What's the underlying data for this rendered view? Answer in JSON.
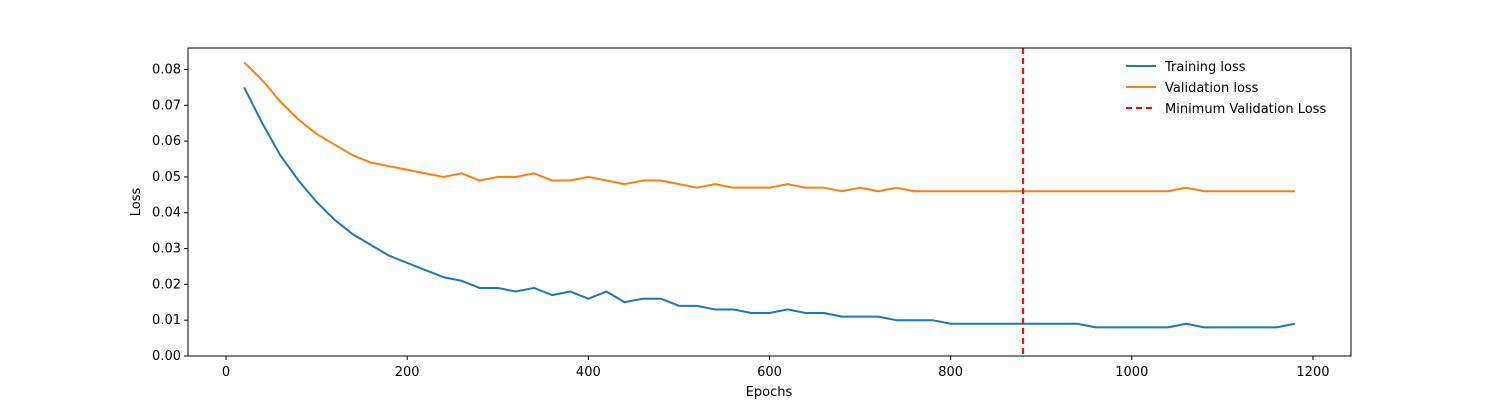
{
  "chart_data": {
    "type": "line",
    "title": "",
    "xlabel": "Epochs",
    "ylabel": "Loss",
    "xlim": [
      -42,
      1242
    ],
    "ylim": [
      0.0,
      0.086
    ],
    "xticks": [
      0,
      200,
      400,
      600,
      800,
      1000,
      1200
    ],
    "xtick_labels": [
      "0",
      "200",
      "400",
      "600",
      "800",
      "1000",
      "1200"
    ],
    "yticks": [
      0.0,
      0.01,
      0.02,
      0.03,
      0.04,
      0.05,
      0.06,
      0.07,
      0.08
    ],
    "ytick_labels": [
      "0.00",
      "0.01",
      "0.02",
      "0.03",
      "0.04",
      "0.05",
      "0.06",
      "0.07",
      "0.08"
    ],
    "grid": false,
    "legend_position": "top-right",
    "series": [
      {
        "name": "Training loss",
        "color": "#1f77b4",
        "x": [
          20,
          40,
          60,
          80,
          100,
          120,
          140,
          160,
          180,
          200,
          220,
          240,
          260,
          280,
          300,
          320,
          340,
          360,
          380,
          400,
          420,
          440,
          460,
          480,
          500,
          520,
          540,
          560,
          580,
          600,
          620,
          640,
          660,
          680,
          700,
          720,
          740,
          760,
          780,
          800,
          820,
          840,
          860,
          880,
          900,
          920,
          940,
          960,
          980,
          1000,
          1020,
          1040,
          1060,
          1080,
          1100,
          1120,
          1140,
          1160,
          1180
        ],
        "y": [
          0.075,
          0.065,
          0.056,
          0.049,
          0.043,
          0.038,
          0.034,
          0.031,
          0.028,
          0.026,
          0.024,
          0.022,
          0.021,
          0.019,
          0.019,
          0.018,
          0.019,
          0.017,
          0.018,
          0.016,
          0.018,
          0.015,
          0.016,
          0.016,
          0.014,
          0.014,
          0.013,
          0.013,
          0.012,
          0.012,
          0.013,
          0.012,
          0.012,
          0.011,
          0.011,
          0.011,
          0.01,
          0.01,
          0.01,
          0.009,
          0.009,
          0.009,
          0.009,
          0.009,
          0.009,
          0.009,
          0.009,
          0.008,
          0.008,
          0.008,
          0.008,
          0.008,
          0.009,
          0.008,
          0.008,
          0.008,
          0.008,
          0.008,
          0.009
        ]
      },
      {
        "name": "Validation loss",
        "color": "#ff7f0e",
        "x": [
          20,
          40,
          60,
          80,
          100,
          120,
          140,
          160,
          180,
          200,
          220,
          240,
          260,
          280,
          300,
          320,
          340,
          360,
          380,
          400,
          420,
          440,
          460,
          480,
          500,
          520,
          540,
          560,
          580,
          600,
          620,
          640,
          660,
          680,
          700,
          720,
          740,
          760,
          780,
          800,
          820,
          840,
          860,
          880,
          900,
          920,
          940,
          960,
          980,
          1000,
          1020,
          1040,
          1060,
          1080,
          1100,
          1120,
          1140,
          1160,
          1180
        ],
        "y": [
          0.082,
          0.077,
          0.071,
          0.066,
          0.062,
          0.059,
          0.056,
          0.054,
          0.053,
          0.052,
          0.051,
          0.05,
          0.051,
          0.049,
          0.05,
          0.05,
          0.051,
          0.049,
          0.049,
          0.05,
          0.049,
          0.048,
          0.049,
          0.049,
          0.048,
          0.047,
          0.048,
          0.047,
          0.047,
          0.047,
          0.048,
          0.047,
          0.047,
          0.046,
          0.047,
          0.046,
          0.047,
          0.046,
          0.046,
          0.046,
          0.046,
          0.046,
          0.046,
          0.046,
          0.046,
          0.046,
          0.046,
          0.046,
          0.046,
          0.046,
          0.046,
          0.046,
          0.047,
          0.046,
          0.046,
          0.046,
          0.046,
          0.046,
          0.046
        ]
      }
    ],
    "reference_lines": [
      {
        "name": "Minimum Validation Loss",
        "orientation": "vertical",
        "x": 880,
        "color": "#ff0000",
        "style": "dashed"
      }
    ]
  }
}
